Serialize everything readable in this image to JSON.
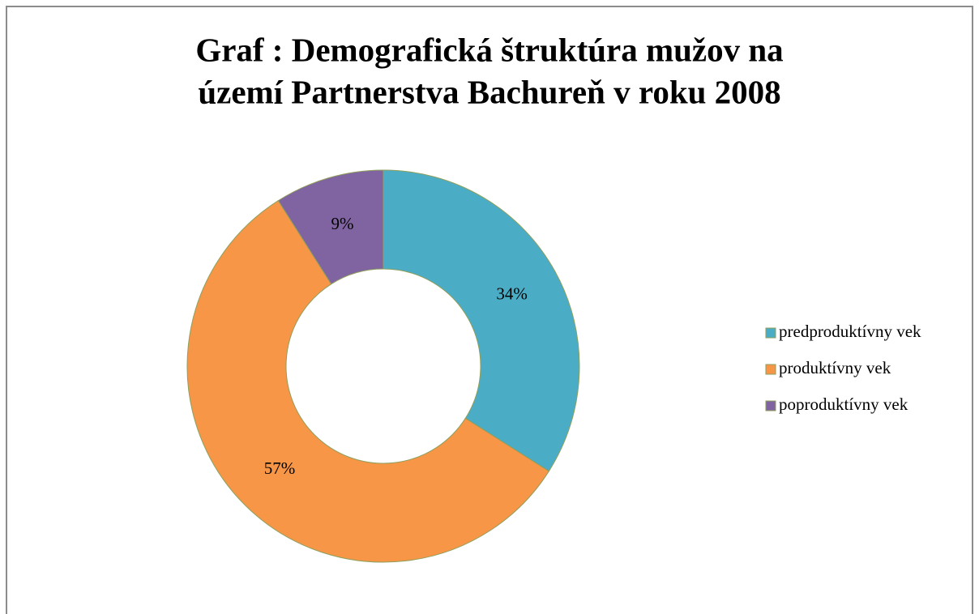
{
  "chart_data": {
    "type": "donut",
    "title": [
      "Graf : Demografická štruktúra mužov  na",
      "území Partnerstva Bachureň v roku 2008"
    ],
    "categories": [
      "predproduktívny vek",
      "produktívny vek",
      "poproduktívny vek"
    ],
    "values": [
      34,
      57,
      9
    ],
    "value_labels": [
      "34%",
      "57%",
      "9%"
    ],
    "colors": [
      "#4bacc6",
      "#f79646",
      "#8064a2"
    ],
    "legend": "right"
  }
}
